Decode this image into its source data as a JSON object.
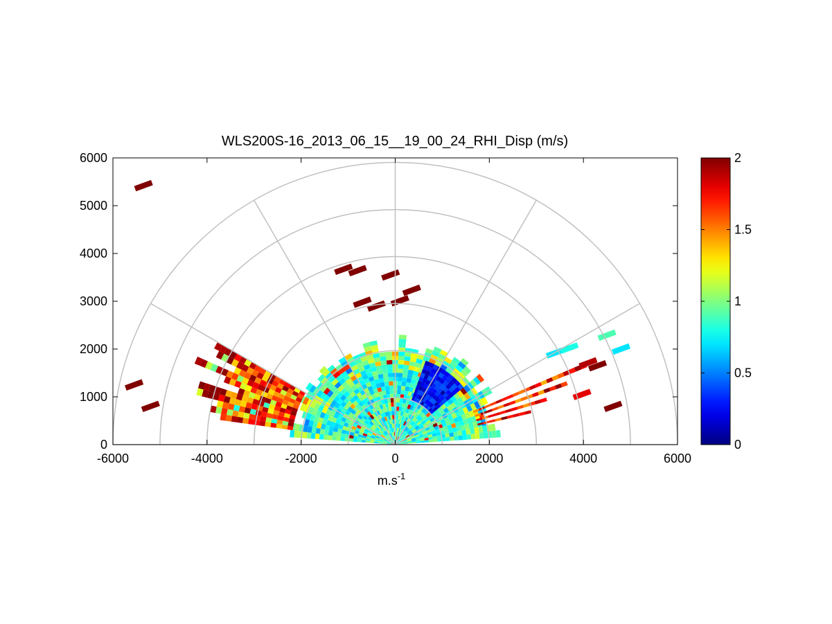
{
  "chart_data": {
    "type": "heatmap",
    "subtype": "polar-rhi",
    "title": "WLS200S-16_2013_06_15__19_00_24_RHI_Disp (m/s)",
    "xlabel_base": "m.s",
    "xlabel_sup": "-1",
    "ylabel": "",
    "xlim": [
      -6000,
      6000
    ],
    "ylim": [
      0,
      6000
    ],
    "x_ticks": [
      -6000,
      -4000,
      -2000,
      0,
      2000,
      4000,
      6000
    ],
    "x_tick_labels": [
      "-6000",
      "-4000",
      "-2000",
      "0",
      "2000",
      "4000",
      "6000"
    ],
    "y_ticks": [
      0,
      1000,
      2000,
      3000,
      4000,
      5000,
      6000
    ],
    "y_tick_labels": [
      "0",
      "1000",
      "2000",
      "3000",
      "4000",
      "5000",
      "6000"
    ],
    "polar_grid": {
      "ring_radii": [
        1000,
        2000,
        3000,
        4000,
        5000,
        6000
      ],
      "spoke_angles_deg": [
        30,
        60,
        90,
        120,
        150
      ]
    },
    "colorbar": {
      "colormap": "jet",
      "range": [
        0,
        2
      ],
      "ticks": [
        0,
        0.5,
        1,
        1.5,
        2
      ],
      "tick_labels": [
        "0",
        "0.5",
        "1",
        "1.5",
        "2"
      ]
    },
    "approx_regions": [
      {
        "name": "near-range",
        "r_max_m": 2300,
        "elev_deg": [
          4,
          176
        ],
        "dispersion": 0.85
      },
      {
        "name": "right-low-beam",
        "r_m": [
          1000,
          1900
        ],
        "elev_deg": [
          40,
          68
        ],
        "dispersion": 0.25
      },
      {
        "name": "left-far-beams",
        "r_m": [
          2800,
          4600
        ],
        "elev_deg": [
          150,
          172
        ],
        "dispersion": 2.0
      },
      {
        "name": "right-far-beams",
        "r_m": [
          2500,
          4700
        ],
        "elev_deg": [
          12,
          24
        ],
        "dispersion": 1.9
      }
    ],
    "scatter_cells": [
      {
        "x": -5350,
        "y": 5420,
        "v": 2.0
      },
      {
        "x": -1100,
        "y": 3670,
        "v": 2.0
      },
      {
        "x": -800,
        "y": 3640,
        "v": 2.0
      },
      {
        "x": -100,
        "y": 3550,
        "v": 2.0
      },
      {
        "x": 350,
        "y": 3230,
        "v": 2.0
      },
      {
        "x": -700,
        "y": 2980,
        "v": 2.0
      },
      {
        "x": 100,
        "y": 3010,
        "v": 2.0
      },
      {
        "x": -400,
        "y": 2900,
        "v": 2.0
      },
      {
        "x": 3400,
        "y": 1920,
        "v": 0.7
      },
      {
        "x": 3700,
        "y": 2020,
        "v": 0.8
      },
      {
        "x": 4500,
        "y": 2290,
        "v": 0.9
      },
      {
        "x": 4800,
        "y": 2000,
        "v": 0.7
      },
      {
        "x": 4100,
        "y": 1710,
        "v": 1.9
      },
      {
        "x": 4300,
        "y": 1650,
        "v": 2.0
      },
      {
        "x": 4630,
        "y": 800,
        "v": 2.0
      },
      {
        "x": 3970,
        "y": 1050,
        "v": 1.8
      },
      {
        "x": -5550,
        "y": 1250,
        "v": 2.0
      },
      {
        "x": -5200,
        "y": 800,
        "v": 2.0
      }
    ]
  }
}
